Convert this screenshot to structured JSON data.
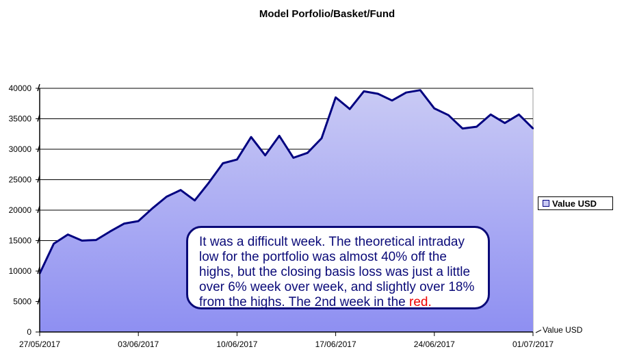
{
  "chart_data": {
    "type": "area",
    "title": "Model Porfolio/Basket/Fund",
    "xlabel": "",
    "ylabel": "",
    "ylim": [
      0,
      40000
    ],
    "yticks": [
      0,
      5000,
      10000,
      15000,
      20000,
      25000,
      30000,
      35000,
      40000
    ],
    "xlim": [
      "27/05/2017",
      "01/07/2017"
    ],
    "xticks": [
      "27/05/2017",
      "03/06/2017",
      "10/06/2017",
      "17/06/2017",
      "24/06/2017",
      "01/07/2017"
    ],
    "grid": "horizontal",
    "legend_position": "right",
    "axis_label_right": "Value USD",
    "colors": {
      "fill_top": "#c9caf4",
      "fill_bottom": "#8e8ff2",
      "line": "#000080"
    },
    "series": [
      {
        "name": "Value USD",
        "x": [
          "27/05/2017",
          "28/05/2017",
          "29/05/2017",
          "30/05/2017",
          "31/05/2017",
          "01/06/2017",
          "02/06/2017",
          "03/06/2017",
          "04/06/2017",
          "05/06/2017",
          "06/06/2017",
          "07/06/2017",
          "08/06/2017",
          "09/06/2017",
          "10/06/2017",
          "11/06/2017",
          "12/06/2017",
          "13/06/2017",
          "14/06/2017",
          "15/06/2017",
          "16/06/2017",
          "17/06/2017",
          "18/06/2017",
          "19/06/2017",
          "20/06/2017",
          "21/06/2017",
          "22/06/2017",
          "23/06/2017",
          "24/06/2017",
          "25/06/2017",
          "26/06/2017",
          "27/06/2017",
          "28/06/2017",
          "29/06/2017",
          "30/06/2017",
          "01/07/2017"
        ],
        "values": [
          9600,
          14500,
          16000,
          15000,
          15100,
          16500,
          17800,
          18200,
          20300,
          22200,
          23300,
          21600,
          24500,
          27700,
          28300,
          32000,
          29000,
          32200,
          28600,
          29400,
          31800,
          38500,
          36600,
          39500,
          39100,
          38000,
          39300,
          39700,
          36700,
          35600,
          33400,
          33700,
          35700,
          34300,
          35700,
          33400
        ]
      }
    ]
  },
  "callout": {
    "text": "It was a difficult week. The theoretical intraday low for the portfolio was almost 40% off the highs, but the closing basis loss was just a little over 6% week over week, and slightly over 18% from the highs. The 2nd week in the ",
    "highlight": "red."
  }
}
